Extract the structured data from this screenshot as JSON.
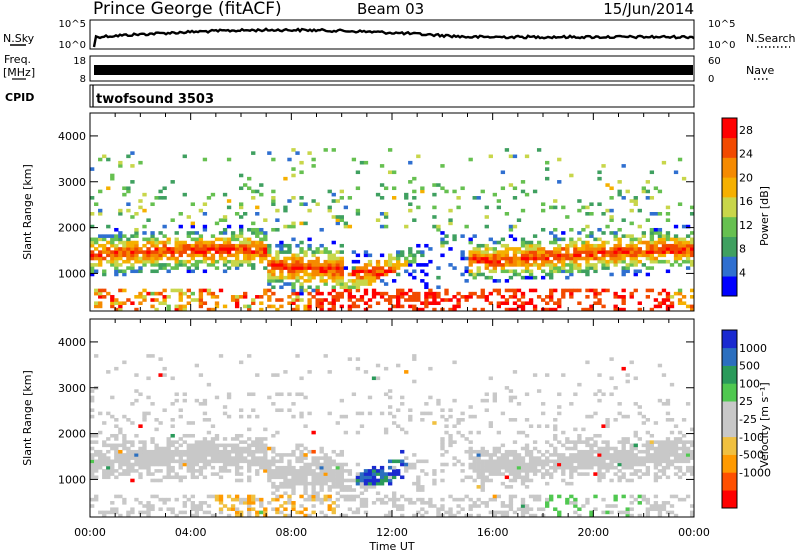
{
  "header": {
    "station": "Prince George (fitACF)",
    "beam": "Beam 03",
    "date": "15/Jun/2014"
  },
  "rows": {
    "nsky_label": "N.Sky",
    "nsearch_label": "N.Search",
    "freq_label": "Freq.",
    "freq_unit": "[MHz]",
    "nave_label": "Nave",
    "cpid_label": "CPID",
    "cpid_value": "twofsound 3503",
    "nsky_ticks": [
      "10^5",
      "10^0"
    ],
    "nsearch_ticks": [
      "10^5",
      "10^0"
    ],
    "freq_ticks": [
      "18",
      "8"
    ],
    "nave_ticks": [
      "60",
      "0"
    ]
  },
  "colors": {
    "power": [
      "#0000ff",
      "#2f6fd0",
      "#3fa060",
      "#66c050",
      "#c8d64a",
      "#f5b000",
      "#f58a00",
      "#f24a00",
      "#ff0000"
    ],
    "velocity": [
      "#ff0000",
      "#ff5000",
      "#ff9a00",
      "#f0c040",
      "#c8c8c8",
      "#c8c8c8",
      "#50c850",
      "#2a9a5a",
      "#2b6fbf",
      "#1a2ad0"
    ]
  },
  "chart_data": [
    {
      "type": "heatmap",
      "panel": "power",
      "xlabel": "",
      "ylabel": "Slant Range [km]",
      "x_tick_labels": [
        "00:00",
        "04:00",
        "08:00",
        "12:00",
        "16:00",
        "20:00",
        "00:00"
      ],
      "y_tick_labels": [
        "1000",
        "2000",
        "3000",
        "4000"
      ],
      "xlim": [
        0,
        24
      ],
      "ylim": [
        180,
        4500
      ],
      "colorbar_label": "Power [dB]",
      "colorbar_ticks": [
        "4",
        "8",
        "12",
        "16",
        "20",
        "24",
        "28"
      ],
      "colorbar_range": [
        0,
        30
      ]
    },
    {
      "type": "heatmap",
      "panel": "velocity",
      "xlabel": "Time UT",
      "ylabel": "Slant Range [km]",
      "x_tick_labels": [
        "00:00",
        "04:00",
        "08:00",
        "12:00",
        "16:00",
        "20:00",
        "00:00"
      ],
      "y_tick_labels": [
        "1000",
        "2000",
        "3000",
        "4000"
      ],
      "xlim": [
        0,
        24
      ],
      "ylim": [
        180,
        4500
      ],
      "colorbar_label": "Velocity [m s⁻¹]",
      "colorbar_ticks": [
        "1000",
        "500",
        "100",
        "25",
        "-25",
        "-100",
        "-500",
        "-1000"
      ]
    }
  ]
}
